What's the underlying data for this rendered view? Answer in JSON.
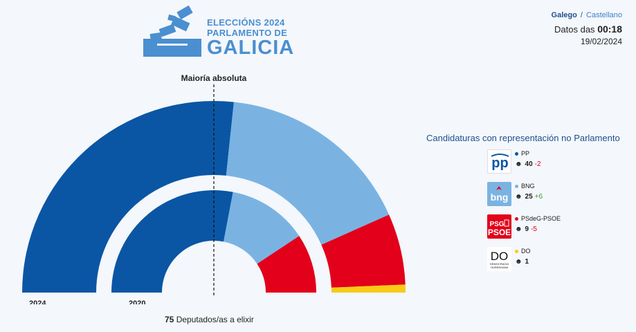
{
  "header": {
    "logo_line1": "ELECCIÓNS 2024",
    "logo_line2": "PARLAMENTO DE",
    "logo_line3": "GALICIA",
    "lang_active": "Galego",
    "lang_sep": "/",
    "lang_other": "Castellano",
    "datos_label": "Datos das",
    "datos_time": "00:18",
    "date": "19/02/2024"
  },
  "colors": {
    "PP": "#0a56a4",
    "BNG": "#7ab3e2",
    "PSdeG-PSOE": "#e2001a",
    "DO": "#f7cb16",
    "brand": "#4a8fd0"
  },
  "chart_data": {
    "type": "hemicycle",
    "majority_label": "Maioría absoluta",
    "total_seats": 75,
    "majority": 38,
    "rings": [
      {
        "name": "2024",
        "segments": [
          {
            "party": "PP",
            "seats": 40
          },
          {
            "party": "BNG",
            "seats": 25
          },
          {
            "party": "PSdeG-PSOE",
            "seats": 9
          },
          {
            "party": "DO",
            "seats": 1
          }
        ]
      },
      {
        "name": "2020",
        "segments": [
          {
            "party": "PP",
            "seats": 42
          },
          {
            "party": "BNG",
            "seats": 19
          },
          {
            "party": "PSdeG-PSOE",
            "seats": 14
          }
        ]
      }
    ]
  },
  "footer": {
    "seats_number": "75",
    "seats_text": "Deputados/as a elixir"
  },
  "legend": {
    "title": "Candidaturas con representación no Parlamento",
    "parties": [
      {
        "name": "PP",
        "seats": "40",
        "change": "-2",
        "change_type": "neg",
        "logo_text": "pp",
        "logo_icon": "pp-logo"
      },
      {
        "name": "BNG",
        "seats": "25",
        "change": "+6",
        "change_type": "pos",
        "logo_text": "bng",
        "logo_icon": "bng-logo"
      },
      {
        "name": "PSdeG-PSOE",
        "seats": "9",
        "change": "-5",
        "change_type": "neg",
        "logo_text": "PSG PSOE",
        "logo_icon": "psoe-logo"
      },
      {
        "name": "DO",
        "seats": "1",
        "change": "",
        "change_type": "",
        "logo_text": "DO",
        "logo_subtext": "DEMOCRACIA OURENSANA",
        "logo_icon": "do-logo"
      }
    ]
  }
}
